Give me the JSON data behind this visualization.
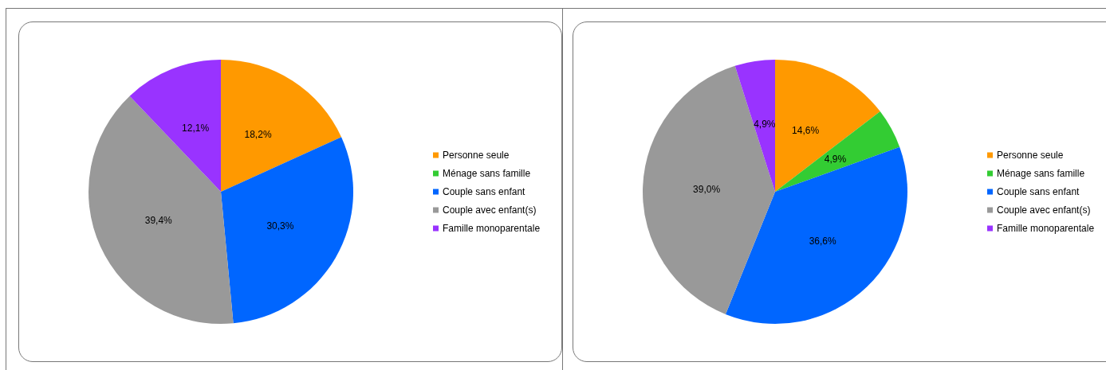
{
  "chart_data": [
    {
      "type": "pie",
      "categories": [
        "Personne seule",
        "Ménage sans famille",
        "Couple sans enfant",
        "Couple avec enfant(s)",
        "Famille monoparentale"
      ],
      "values": [
        18.2,
        0,
        30.3,
        39.4,
        12.1
      ],
      "value_labels": [
        "18,2%",
        null,
        "30,3%",
        "39,4%",
        "12,1%"
      ],
      "colors": [
        "#ff9900",
        "#33cc33",
        "#0066ff",
        "#999999",
        "#9933ff"
      ],
      "legend": "right"
    },
    {
      "type": "pie",
      "categories": [
        "Personne seule",
        "Ménage sans famille",
        "Couple sans enfant",
        "Couple avec enfant(s)",
        "Famille monoparentale"
      ],
      "values": [
        14.6,
        4.9,
        36.6,
        39.0,
        4.9
      ],
      "value_labels": [
        "14,6%",
        "4,9%",
        "36,6%",
        "39,0%",
        "4,9%"
      ],
      "colors": [
        "#ff9900",
        "#33cc33",
        "#0066ff",
        "#999999",
        "#9933ff"
      ],
      "legend": "right"
    }
  ]
}
